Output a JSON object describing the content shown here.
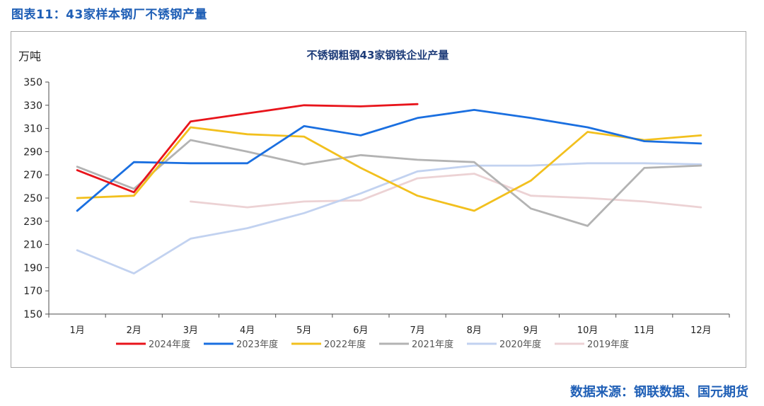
{
  "figure_title": "图表11：43家样本钢厂不锈钢产量",
  "source_note": "数据来源：钢联数据、国元期货",
  "chart_data": {
    "type": "line",
    "title": "不锈钢粗钢43家钢铁企业产量",
    "ylabel": "万吨",
    "xlabel": "",
    "categories": [
      "1月",
      "2月",
      "3月",
      "4月",
      "5月",
      "6月",
      "7月",
      "8月",
      "9月",
      "10月",
      "11月",
      "12月"
    ],
    "ylim": [
      150,
      350
    ],
    "yticks": [
      150,
      170,
      190,
      210,
      230,
      250,
      270,
      290,
      310,
      330,
      350
    ],
    "grid": false,
    "legend_position": "bottom",
    "series": [
      {
        "name": "2024年度",
        "color": "#e8141b",
        "values": [
          274,
          255,
          316,
          323,
          330,
          329,
          331,
          null,
          null,
          null,
          null,
          null
        ]
      },
      {
        "name": "2023年度",
        "color": "#1a6fe0",
        "values": [
          239,
          281,
          280,
          280,
          312,
          304,
          319,
          326,
          319,
          311,
          299,
          297
        ]
      },
      {
        "name": "2022年度",
        "color": "#f2c01e",
        "values": [
          250,
          252,
          311,
          305,
          303,
          276,
          252,
          239,
          265,
          307,
          300,
          304
        ]
      },
      {
        "name": "2021年度",
        "color": "#b3b3b3",
        "values": [
          277,
          258,
          300,
          290,
          279,
          287,
          283,
          281,
          241,
          226,
          276,
          278
        ]
      },
      {
        "name": "2020年度",
        "color": "#c2d2f0",
        "values": [
          205,
          185,
          215,
          224,
          237,
          254,
          273,
          278,
          278,
          280,
          280,
          279
        ]
      },
      {
        "name": "2019年度",
        "color": "#ecd2d4",
        "values": [
          null,
          null,
          247,
          242,
          247,
          248,
          267,
          271,
          252,
          250,
          247,
          242
        ]
      }
    ]
  }
}
